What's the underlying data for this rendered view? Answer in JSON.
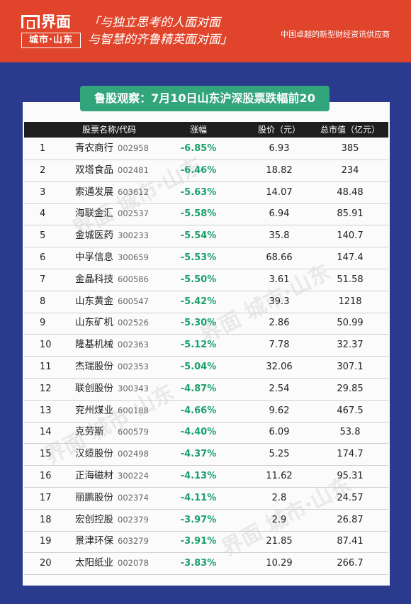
{
  "header": {
    "logo_top": "界面",
    "logo_bottom": "城市·山东",
    "slogan_line1": "「与独立思考的人面对面",
    "slogan_line2": "与智慧的齐鲁精英面对面」",
    "tagline": "中国卓越的新型财经资讯供应商"
  },
  "title": "鲁股观察：7月10日山东沪深股票跌幅前20",
  "table": {
    "headers": [
      "股票名称/代码",
      "涨幅",
      "股价（元）",
      "总市值（亿元）"
    ],
    "rows": [
      {
        "rank": "1",
        "name": "青农商行",
        "code": "002958",
        "change": "-6.85%",
        "price": "6.93",
        "cap": "385"
      },
      {
        "rank": "2",
        "name": "双塔食品",
        "code": "002481",
        "change": "-6.46%",
        "price": "18.82",
        "cap": "234"
      },
      {
        "rank": "3",
        "name": "索通发展",
        "code": "603612",
        "change": "-5.63%",
        "price": "14.07",
        "cap": "48.48"
      },
      {
        "rank": "4",
        "name": "海联金汇",
        "code": "002537",
        "change": "-5.58%",
        "price": "6.94",
        "cap": "85.91"
      },
      {
        "rank": "5",
        "name": "金城医药",
        "code": "300233",
        "change": "-5.54%",
        "price": "35.8",
        "cap": "140.7"
      },
      {
        "rank": "6",
        "name": "中孚信息",
        "code": "300659",
        "change": "-5.53%",
        "price": "68.66",
        "cap": "147.4"
      },
      {
        "rank": "7",
        "name": "金晶科技",
        "code": "600586",
        "change": "-5.50%",
        "price": "3.61",
        "cap": "51.58"
      },
      {
        "rank": "8",
        "name": "山东黄金",
        "code": "600547",
        "change": "-5.42%",
        "price": "39.3",
        "cap": "1218"
      },
      {
        "rank": "9",
        "name": "山东矿机",
        "code": "002526",
        "change": "-5.30%",
        "price": "2.86",
        "cap": "50.99"
      },
      {
        "rank": "10",
        "name": "隆基机械",
        "code": "002363",
        "change": "-5.12%",
        "price": "7.78",
        "cap": "32.37"
      },
      {
        "rank": "11",
        "name": "杰瑞股份",
        "code": "002353",
        "change": "-5.04%",
        "price": "32.06",
        "cap": "307.1"
      },
      {
        "rank": "12",
        "name": "联创股份",
        "code": "300343",
        "change": "-4.87%",
        "price": "2.54",
        "cap": "29.85"
      },
      {
        "rank": "13",
        "name": "兖州煤业",
        "code": "600188",
        "change": "-4.66%",
        "price": "9.62",
        "cap": "467.5"
      },
      {
        "rank": "14",
        "name": "克劳斯",
        "code": "600579",
        "change": "-4.40%",
        "price": "6.09",
        "cap": "53.8"
      },
      {
        "rank": "15",
        "name": "汉缆股份",
        "code": "002498",
        "change": "-4.37%",
        "price": "5.25",
        "cap": "174.7"
      },
      {
        "rank": "16",
        "name": "正海磁材",
        "code": "300224",
        "change": "-4.13%",
        "price": "11.62",
        "cap": "95.31"
      },
      {
        "rank": "17",
        "name": "丽鹏股份",
        "code": "002374",
        "change": "-4.11%",
        "price": "2.8",
        "cap": "24.57"
      },
      {
        "rank": "18",
        "name": "宏创控股",
        "code": "002379",
        "change": "-3.97%",
        "price": "2.9",
        "cap": "26.87"
      },
      {
        "rank": "19",
        "name": "景津环保",
        "code": "603279",
        "change": "-3.91%",
        "price": "21.85",
        "cap": "87.41"
      },
      {
        "rank": "20",
        "name": "太阳纸业",
        "code": "002078",
        "change": "-3.83%",
        "price": "10.29",
        "cap": "266.7"
      }
    ]
  },
  "watermark": "界面 城市·山东",
  "colors": {
    "header_red": "#e0442a",
    "background_blue": "#2a3a8c",
    "title_green": "#33a57c",
    "change_green": "#1aa06d"
  }
}
